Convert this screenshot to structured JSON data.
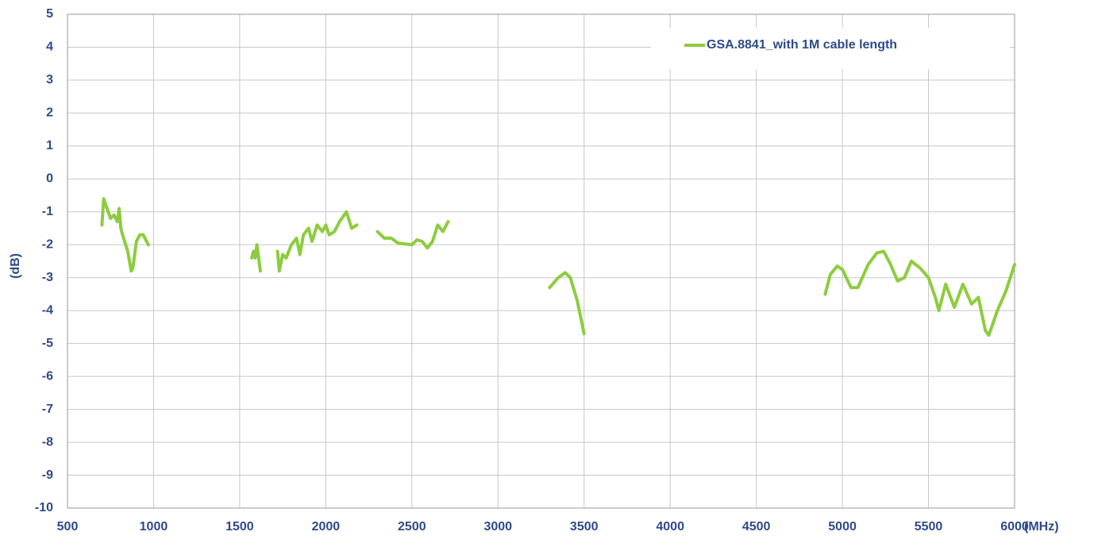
{
  "chart_data": {
    "type": "line",
    "x_label": "(MHz)",
    "y_label": "(dB)",
    "x": [
      700,
      710,
      730,
      750,
      770,
      790,
      800,
      810,
      820,
      850,
      870,
      880,
      900,
      920,
      940,
      970,
      null,
      1570,
      1580,
      1590,
      1600,
      1620,
      null,
      1720,
      1730,
      1750,
      1770,
      1800,
      1830,
      1850,
      1870,
      1900,
      1920,
      1950,
      1980,
      2000,
      2020,
      2050,
      2080,
      2120,
      2150,
      2180,
      null,
      2300,
      2340,
      2380,
      2420,
      2500,
      2530,
      2560,
      2590,
      2620,
      2650,
      2680,
      2710,
      null,
      3300,
      3350,
      3390,
      3420,
      3460,
      3500,
      null,
      4900,
      4930,
      4970,
      5000,
      5050,
      5090,
      5150,
      5200,
      5240,
      5280,
      5320,
      5360,
      5400,
      5450,
      5500,
      5540,
      5560,
      5600,
      5650,
      5700,
      5750,
      5790,
      5830,
      5850,
      5900,
      5950,
      6000
    ],
    "series": [
      {
        "name": "GSA.8841_with 1M cable length",
        "color": "#8dcc3f",
        "values": [
          -1.4,
          -0.6,
          -0.9,
          -1.2,
          -1.1,
          -1.3,
          -0.9,
          -1.5,
          -1.7,
          -2.2,
          -2.8,
          -2.7,
          -1.9,
          -1.7,
          -1.7,
          -2.0,
          null,
          -2.4,
          -2.2,
          -2.4,
          -2.0,
          -2.8,
          null,
          -2.2,
          -2.8,
          -2.3,
          -2.4,
          -2.0,
          -1.8,
          -2.3,
          -1.7,
          -1.5,
          -1.9,
          -1.4,
          -1.6,
          -1.4,
          -1.7,
          -1.6,
          -1.3,
          -1.0,
          -1.5,
          -1.4,
          null,
          -1.6,
          -1.8,
          -1.8,
          -1.95,
          -2.0,
          -1.85,
          -1.9,
          -2.1,
          -1.9,
          -1.4,
          -1.6,
          -1.3,
          null,
          -3.3,
          -3.0,
          -2.85,
          -3.0,
          -3.7,
          -4.7,
          null,
          -3.5,
          -2.9,
          -2.65,
          -2.75,
          -3.3,
          -3.3,
          -2.6,
          -2.25,
          -2.2,
          -2.6,
          -3.1,
          -3.0,
          -2.5,
          -2.7,
          -3.0,
          -3.6,
          -4.0,
          -3.2,
          -3.9,
          -3.2,
          -3.8,
          -3.6,
          -4.6,
          -4.75,
          -4.0,
          -3.4,
          -2.6
        ]
      }
    ],
    "xlim": [
      500,
      6000
    ],
    "xticks": [
      500,
      1000,
      1500,
      2000,
      2500,
      3000,
      3500,
      4000,
      4500,
      5000,
      5500,
      6000
    ],
    "ylim": [
      -10,
      5
    ],
    "yticks": [
      5,
      4,
      3,
      2,
      1,
      0,
      -1,
      -2,
      -3,
      -4,
      -5,
      -6,
      -7,
      -8,
      -9,
      -10
    ],
    "grid": true,
    "legend": "top-right"
  }
}
